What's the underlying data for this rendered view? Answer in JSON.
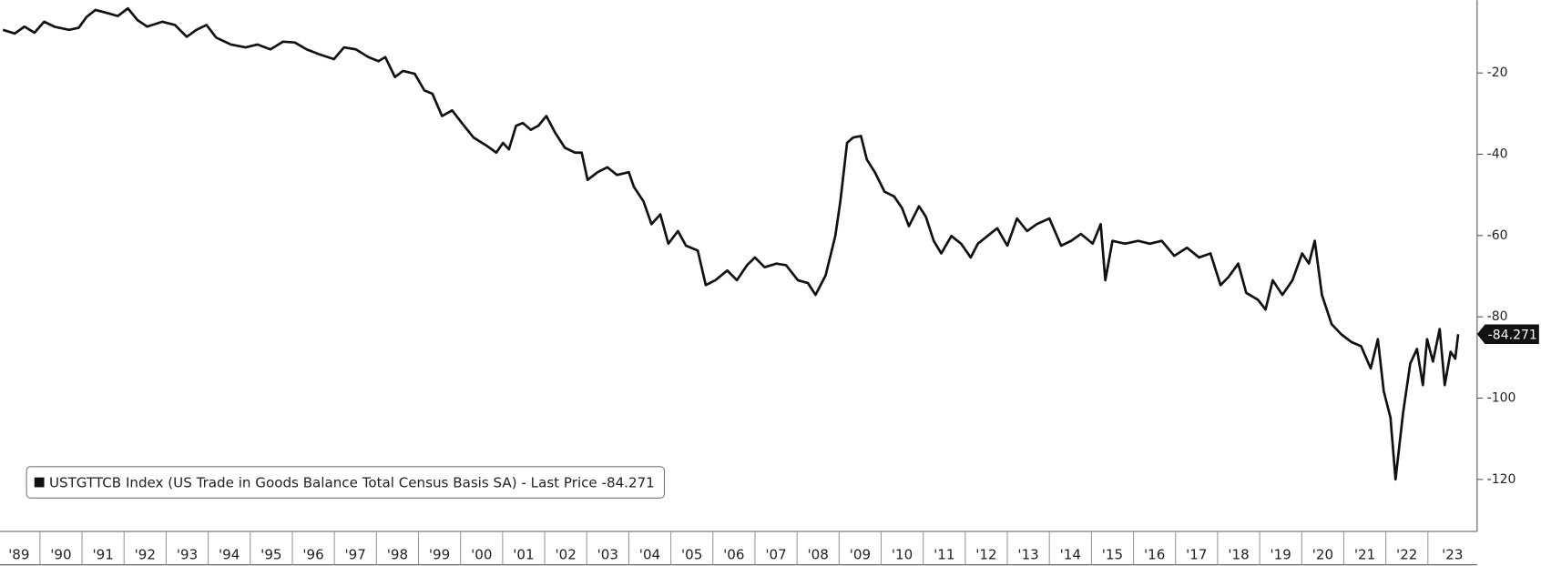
{
  "chart_data": {
    "type": "line",
    "x": [
      1989.12,
      1989.4,
      1989.63,
      1989.87,
      1990.1,
      1990.34,
      1990.69,
      1990.92,
      1991.11,
      1991.32,
      1991.62,
      1991.85,
      1992.09,
      1992.32,
      1992.55,
      1992.91,
      1993.21,
      1993.49,
      1993.72,
      1993.96,
      1994.19,
      1994.54,
      1994.89,
      1995.17,
      1995.48,
      1995.78,
      1996.06,
      1996.34,
      1996.64,
      1996.99,
      1997.23,
      1997.51,
      1997.81,
      1998.05,
      1998.21,
      1998.44,
      1998.63,
      1998.91,
      1999.14,
      1999.33,
      1999.56,
      1999.8,
      2000.03,
      2000.31,
      2000.62,
      2000.85,
      2001.01,
      2001.15,
      2001.32,
      2001.48,
      2001.67,
      2001.85,
      2002.04,
      2002.25,
      2002.48,
      2002.72,
      2002.88,
      2003.02,
      2003.26,
      2003.49,
      2003.72,
      2004.0,
      2004.12,
      2004.35,
      2004.54,
      2004.75,
      2004.94,
      2005.17,
      2005.36,
      2005.64,
      2005.83,
      2006.06,
      2006.34,
      2006.57,
      2006.81,
      2007.0,
      2007.23,
      2007.51,
      2007.74,
      2008.02,
      2008.26,
      2008.44,
      2008.68,
      2008.91,
      2009.03,
      2009.19,
      2009.33,
      2009.52,
      2009.66,
      2009.85,
      2010.08,
      2010.31,
      2010.5,
      2010.66,
      2010.9,
      2011.06,
      2011.25,
      2011.43,
      2011.67,
      2011.9,
      2012.13,
      2012.3,
      2012.53,
      2012.76,
      2013.0,
      2013.23,
      2013.47,
      2013.7,
      2014.0,
      2014.28,
      2014.52,
      2014.75,
      2015.03,
      2015.22,
      2015.33,
      2015.5,
      2015.8,
      2016.11,
      2016.39,
      2016.67,
      2016.97,
      2017.27,
      2017.56,
      2017.83,
      2018.07,
      2018.26,
      2018.49,
      2018.68,
      2018.96,
      2019.14,
      2019.31,
      2019.54,
      2019.78,
      2020.01,
      2020.17,
      2020.31,
      2020.48,
      2020.71,
      2020.94,
      2021.18,
      2021.41,
      2021.64,
      2021.81,
      2021.95,
      2022.11,
      2022.23,
      2022.41,
      2022.58,
      2022.74,
      2022.88,
      2022.98,
      2023.12,
      2023.28,
      2023.4,
      2023.54,
      2023.65,
      2023.72
    ],
    "series": [
      {
        "name": "USTGTTCB Index (US Trade in Goods Balance Total Census Basis SA) - Last Price -84.271",
        "color": "#111111",
        "values": [
          -9.4,
          -10.3,
          -8.6,
          -10.1,
          -7.4,
          -8.6,
          -9.4,
          -8.9,
          -6.2,
          -4.5,
          -5.3,
          -6.0,
          -4.1,
          -7.0,
          -8.6,
          -7.4,
          -8.2,
          -11.1,
          -9.4,
          -8.2,
          -11.3,
          -13.0,
          -13.7,
          -13.0,
          -14.2,
          -12.3,
          -12.5,
          -14.2,
          -15.4,
          -16.6,
          -13.7,
          -14.2,
          -16.1,
          -17.1,
          -16.1,
          -21.0,
          -19.5,
          -20.2,
          -24.3,
          -25.1,
          -30.6,
          -29.2,
          -32.3,
          -35.9,
          -37.9,
          -39.6,
          -37.2,
          -38.8,
          -33.0,
          -32.3,
          -34.0,
          -33.0,
          -30.6,
          -34.7,
          -38.4,
          -39.6,
          -39.6,
          -46.3,
          -44.4,
          -43.2,
          -45.1,
          -44.4,
          -48.0,
          -51.6,
          -57.2,
          -54.8,
          -62.0,
          -58.9,
          -62.5,
          -63.7,
          -72.2,
          -71.0,
          -68.6,
          -71.0,
          -67.3,
          -65.4,
          -67.8,
          -66.9,
          -67.3,
          -71.0,
          -71.7,
          -74.6,
          -69.8,
          -60.1,
          -51.6,
          -37.2,
          -35.9,
          -35.5,
          -41.3,
          -44.4,
          -49.2,
          -50.4,
          -53.3,
          -57.7,
          -52.8,
          -55.3,
          -61.3,
          -64.4,
          -60.1,
          -62.0,
          -65.4,
          -62.0,
          -60.1,
          -58.2,
          -62.5,
          -55.8,
          -58.9,
          -57.2,
          -55.8,
          -62.5,
          -61.3,
          -59.6,
          -62.0,
          -57.2,
          -71.0,
          -61.3,
          -62.0,
          -61.3,
          -62.0,
          -61.3,
          -65.0,
          -63.0,
          -65.4,
          -64.4,
          -72.2,
          -70.2,
          -66.9,
          -74.1,
          -75.8,
          -78.2,
          -71.0,
          -74.6,
          -71.0,
          -64.4,
          -66.9,
          -61.3,
          -74.6,
          -81.8,
          -84.3,
          -86.2,
          -87.2,
          -92.7,
          -85.5,
          -98.3,
          -104.8,
          -120.0,
          -103.6,
          -91.5,
          -87.9,
          -96.8,
          -85.5,
          -91.0,
          -83.0,
          -96.8,
          -88.6,
          -90.3,
          -84.271
        ]
      }
    ],
    "xlim": [
      1989.05,
      2024.17
    ],
    "xticks": [
      {
        "value": 1989,
        "label": "'89"
      },
      {
        "value": 1990,
        "label": "'90"
      },
      {
        "value": 1991,
        "label": "'91"
      },
      {
        "value": 1992,
        "label": "'92"
      },
      {
        "value": 1993,
        "label": "'93"
      },
      {
        "value": 1994,
        "label": "'94"
      },
      {
        "value": 1995,
        "label": "'95"
      },
      {
        "value": 1996,
        "label": "'96"
      },
      {
        "value": 1997,
        "label": "'97"
      },
      {
        "value": 1998,
        "label": "'98"
      },
      {
        "value": 1999,
        "label": "'99"
      },
      {
        "value": 2000,
        "label": "'00"
      },
      {
        "value": 2001,
        "label": "'01"
      },
      {
        "value": 2002,
        "label": "'02"
      },
      {
        "value": 2003,
        "label": "'03"
      },
      {
        "value": 2004,
        "label": "'04"
      },
      {
        "value": 2005,
        "label": "'05"
      },
      {
        "value": 2006,
        "label": "'06"
      },
      {
        "value": 2007,
        "label": "'07"
      },
      {
        "value": 2008,
        "label": "'08"
      },
      {
        "value": 2009,
        "label": "'09"
      },
      {
        "value": 2010,
        "label": "'10"
      },
      {
        "value": 2011,
        "label": "'11"
      },
      {
        "value": 2012,
        "label": "'12"
      },
      {
        "value": 2013,
        "label": "'13"
      },
      {
        "value": 2014,
        "label": "'14"
      },
      {
        "value": 2015,
        "label": "'15"
      },
      {
        "value": 2016,
        "label": "'16"
      },
      {
        "value": 2017,
        "label": "'17"
      },
      {
        "value": 2018,
        "label": "'18"
      },
      {
        "value": 2019,
        "label": "'19"
      },
      {
        "value": 2020,
        "label": "'20"
      },
      {
        "value": 2021,
        "label": "'21"
      },
      {
        "value": 2022,
        "label": "'22"
      },
      {
        "value": 2023,
        "label": "'23"
      }
    ],
    "ylim": [
      -132.8,
      -2.1
    ],
    "yticks": [
      -20,
      -40,
      -60,
      -80,
      -100,
      -120
    ],
    "grid": false,
    "legend": "lower left"
  }
}
